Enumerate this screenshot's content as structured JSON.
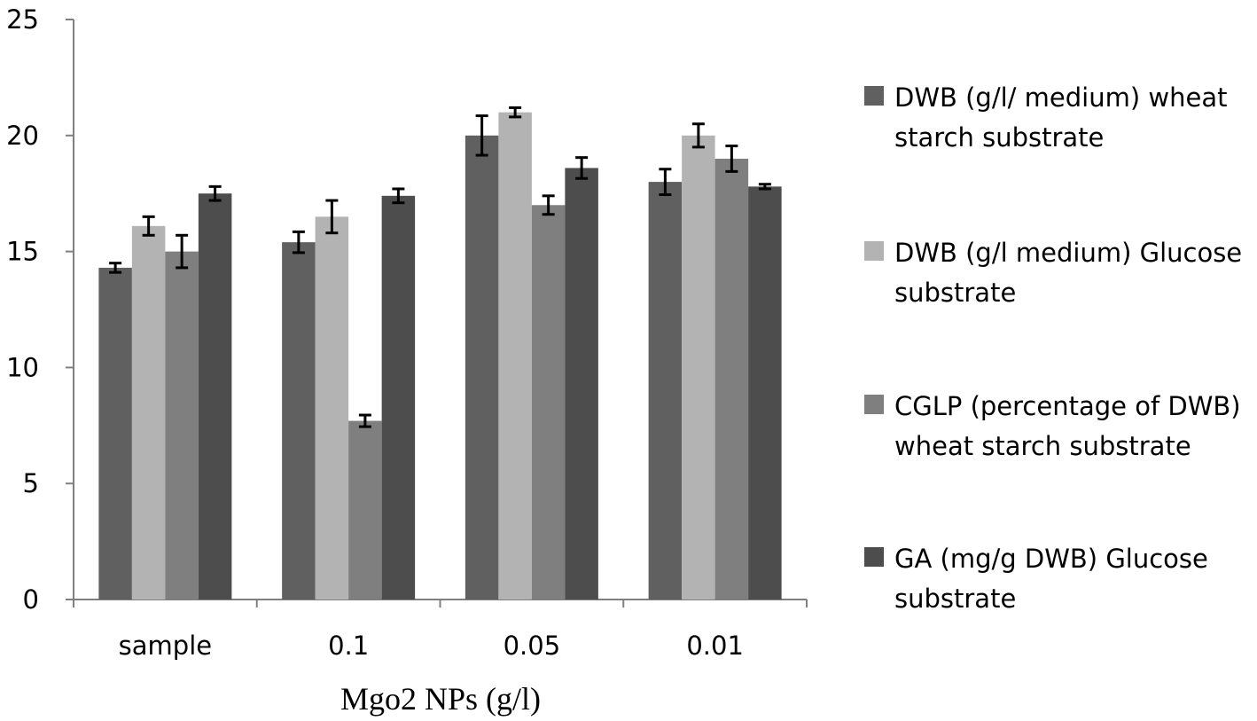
{
  "chart_data": {
    "type": "bar",
    "title": "",
    "xlabel": "Mgo2 NPs (g/l)",
    "ylabel": "",
    "ylim": [
      0,
      25
    ],
    "yticks": [
      0,
      5,
      10,
      15,
      20,
      25
    ],
    "categories": [
      "sample",
      "0.1",
      "0.05",
      "0.01"
    ],
    "series": [
      {
        "name": "DWB (g/l/ medium) wheat starch substrate",
        "color": "#606060",
        "values": [
          14.3,
          15.4,
          20.0,
          18.0
        ],
        "errors": [
          0.2,
          0.45,
          0.85,
          0.55
        ]
      },
      {
        "name": "DWB (g/l medium) Glucose substrate",
        "color": "#b3b3b3",
        "values": [
          16.1,
          16.5,
          21.0,
          20.0
        ],
        "errors": [
          0.4,
          0.7,
          0.2,
          0.5
        ]
      },
      {
        "name": "CGLP (percentage of DWB)  wheat starch substrate",
        "color": "#7f7f7f",
        "values": [
          15.0,
          7.7,
          17.0,
          19.0
        ],
        "errors": [
          0.7,
          0.25,
          0.4,
          0.55
        ]
      },
      {
        "name": "GA (mg/g DWB) Glucose substrate",
        "color": "#4d4d4d",
        "values": [
          17.5,
          17.4,
          18.6,
          17.8
        ],
        "errors": [
          0.3,
          0.3,
          0.45,
          0.1
        ]
      }
    ],
    "legend_position": "right",
    "grid": false
  }
}
